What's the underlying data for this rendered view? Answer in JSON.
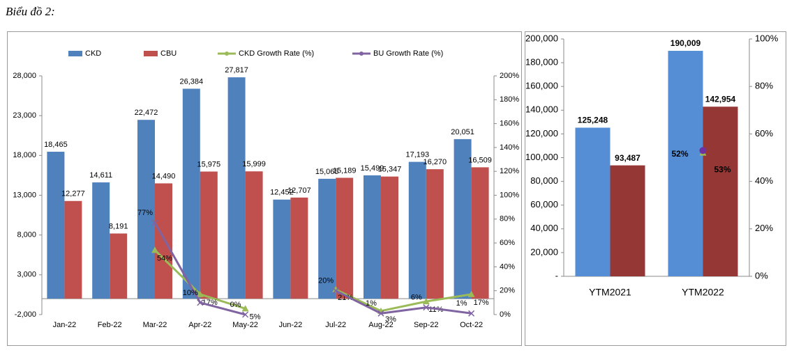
{
  "heading": "Biểu đồ 2:",
  "chart_data": [
    {
      "type": "bar",
      "categories": [
        "Jan-22",
        "Feb-22",
        "Mar-22",
        "Apr-22",
        "May-22",
        "Jun-22",
        "Jul-22",
        "Aug-22",
        "Sep-22",
        "Oct-22"
      ],
      "series": [
        {
          "name": "CKD",
          "color": "#4f81bd",
          "type": "bar",
          "values": [
            18465,
            14611,
            22472,
            26384,
            27817,
            12452,
            15065,
            15499,
            17193,
            20051
          ],
          "value_labels": [
            "18,465",
            "14,611",
            "22,472",
            "26,384",
            "27,817",
            "12,452",
            "15,065",
            "15,499",
            "17,193",
            "20,051"
          ]
        },
        {
          "name": "CBU",
          "color": "#c0504d",
          "type": "bar",
          "values": [
            12277,
            8191,
            14490,
            15975,
            15999,
            12707,
            15189,
            15347,
            16270,
            16509
          ],
          "value_labels": [
            "12,277",
            "8,191",
            "14,490",
            "15,975",
            "15,999",
            "12,707",
            "15,189",
            "15,347",
            "16,270",
            "16,509"
          ]
        },
        {
          "name": "CKD Growth Rate (%)",
          "color": "#9bbb59",
          "type": "line",
          "axis": "y2",
          "values": [
            null,
            null,
            54,
            17,
            5,
            null,
            21,
            3,
            11,
            17
          ],
          "value_labels": [
            null,
            null,
            "54%",
            "17%",
            "5%",
            null,
            "21%",
            "3%",
            "11%",
            "17%"
          ]
        },
        {
          "name": "BU Growth Rate (%)",
          "color": "#8064a2",
          "type": "line",
          "axis": "y2",
          "values": [
            null,
            null,
            77,
            10,
            0,
            null,
            20,
            1,
            6,
            1
          ],
          "value_labels": [
            null,
            null,
            "77%",
            "10%",
            "0%",
            null,
            "20%",
            "1%",
            "6%",
            "1%"
          ]
        }
      ],
      "ylim": [
        -2000,
        28000
      ],
      "yticks": [
        {
          "value": -2000,
          "label": "-2,000"
        },
        {
          "value": 3000,
          "label": "3,000"
        },
        {
          "value": 8000,
          "label": "8,000"
        },
        {
          "value": 13000,
          "label": "13,000"
        },
        {
          "value": 18000,
          "label": "18,000"
        },
        {
          "value": 23000,
          "label": "23,000"
        },
        {
          "value": 28000,
          "label": "28,000"
        }
      ],
      "y2lim": [
        0,
        200
      ],
      "y2ticks": [
        {
          "value": 0,
          "label": "0%"
        },
        {
          "value": 20,
          "label": "20%"
        },
        {
          "value": 40,
          "label": "40%"
        },
        {
          "value": 60,
          "label": "60%"
        },
        {
          "value": 80,
          "label": "80%"
        },
        {
          "value": 100,
          "label": "100%"
        },
        {
          "value": 120,
          "label": "120%"
        },
        {
          "value": 140,
          "label": "140%"
        },
        {
          "value": 160,
          "label": "160%"
        },
        {
          "value": 180,
          "label": "180%"
        },
        {
          "value": 200,
          "label": "200%"
        }
      ],
      "grid": false,
      "legend": "top"
    },
    {
      "type": "bar",
      "categories": [
        "YTM2021",
        "YTM2022"
      ],
      "series": [
        {
          "color": "#558ed5",
          "type": "bar",
          "values": [
            125248,
            190009
          ],
          "value_labels": [
            "125,248",
            "190,009"
          ]
        },
        {
          "color": "#953735",
          "type": "bar",
          "values": [
            93487,
            142954
          ],
          "value_labels": [
            "93,487",
            "142,954"
          ]
        },
        {
          "color": "#9bbb59",
          "type": "line",
          "axis": "y2",
          "values": [
            null,
            52
          ],
          "value_labels": [
            null,
            "52%"
          ]
        },
        {
          "color": "#7030a0",
          "type": "line",
          "axis": "y2",
          "values": [
            null,
            53
          ],
          "value_labels": [
            null,
            "53%"
          ]
        }
      ],
      "ylim": [
        0,
        200000
      ],
      "yticks": [
        {
          "value": 0,
          "label": "-"
        },
        {
          "value": 20000,
          "label": "20,000"
        },
        {
          "value": 40000,
          "label": "40,000"
        },
        {
          "value": 60000,
          "label": "60,000"
        },
        {
          "value": 80000,
          "label": "80,000"
        },
        {
          "value": 100000,
          "label": "100,000"
        },
        {
          "value": 120000,
          "label": "120,000"
        },
        {
          "value": 140000,
          "label": "140,000"
        },
        {
          "value": 160000,
          "label": "160,000"
        },
        {
          "value": 180000,
          "label": "180,000"
        },
        {
          "value": 200000,
          "label": "200,000"
        }
      ],
      "y2lim": [
        0,
        100
      ],
      "y2ticks": [
        {
          "value": 0,
          "label": "0%"
        },
        {
          "value": 20,
          "label": "20%"
        },
        {
          "value": 40,
          "label": "40%"
        },
        {
          "value": 60,
          "label": "60%"
        },
        {
          "value": 80,
          "label": "80%"
        },
        {
          "value": 100,
          "label": "100%"
        }
      ],
      "grid": false
    }
  ]
}
